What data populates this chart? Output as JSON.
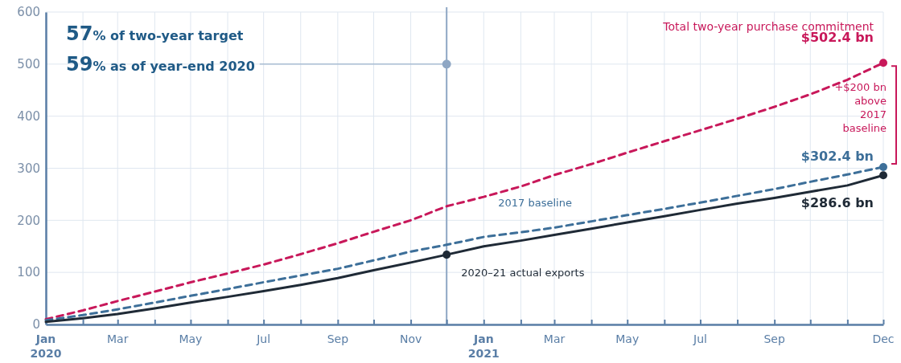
{
  "chart_data": {
    "type": "line",
    "x": [
      "2020-01",
      "2020-02",
      "2020-03",
      "2020-04",
      "2020-05",
      "2020-06",
      "2020-07",
      "2020-08",
      "2020-09",
      "2020-10",
      "2020-11",
      "2020-12",
      "2021-01",
      "2021-02",
      "2021-03",
      "2021-04",
      "2021-05",
      "2021-06",
      "2021-07",
      "2021-08",
      "2021-09",
      "2021-10",
      "2021-11",
      "2021-12"
    ],
    "series": [
      {
        "name": "Total two-year purchase commitment",
        "color": "#c8185a",
        "line_style": "dashed",
        "values": [
          10,
          27,
          45,
          63,
          81,
          98,
          115,
          135,
          156,
          178,
          200,
          227,
          245,
          265,
          287,
          308,
          330,
          352,
          373,
          395,
          418,
          442,
          470,
          502.4
        ],
        "value_labels": [
          null,
          null,
          null,
          null,
          null,
          null,
          null,
          null,
          null,
          null,
          null,
          null,
          null,
          null,
          null,
          null,
          null,
          null,
          null,
          null,
          null,
          null,
          null,
          "$502.4 bn"
        ]
      },
      {
        "name": "2017 baseline",
        "color": "#3d6f99",
        "line_style": "dashed",
        "values": [
          8,
          18,
          29,
          42,
          55,
          68,
          81,
          94,
          107,
          123,
          140,
          153,
          168,
          177,
          186,
          198,
          210,
          222,
          234,
          247,
          260,
          274,
          288,
          302.4
        ],
        "value_labels": [
          null,
          null,
          null,
          null,
          null,
          null,
          null,
          null,
          null,
          null,
          null,
          null,
          null,
          null,
          null,
          null,
          null,
          null,
          null,
          null,
          null,
          null,
          null,
          "$302.4 bn"
        ]
      },
      {
        "name": "2020–21 actual exports",
        "color": "#1f2a36",
        "line_style": "solid",
        "values": [
          5,
          12,
          20,
          31,
          42,
          53,
          64,
          76,
          89,
          104,
          119,
          134,
          150,
          161,
          172,
          184,
          196,
          208,
          220,
          232,
          243,
          255,
          267,
          286.6
        ],
        "value_labels": [
          null,
          null,
          null,
          null,
          null,
          null,
          null,
          null,
          null,
          null,
          null,
          null,
          null,
          null,
          null,
          null,
          null,
          null,
          null,
          null,
          null,
          null,
          null,
          "$286.6 bn"
        ]
      },
      {
        "type": "scatter",
        "color": "#1f2a36",
        "marker": "circle",
        "x": [
          "2020-12"
        ],
        "values": [
          134
        ]
      }
    ],
    "xlim": [
      "2020-01",
      "2021-12"
    ],
    "xticks": [
      {
        "value": "2020-01",
        "label": "Jan 2020"
      },
      {
        "value": "2020-02",
        "label": null
      },
      {
        "value": "2020-03",
        "label": "Mar"
      },
      {
        "value": "2020-04",
        "label": null
      },
      {
        "value": "2020-05",
        "label": "May"
      },
      {
        "value": "2020-06",
        "label": null
      },
      {
        "value": "2020-07",
        "label": "Jul"
      },
      {
        "value": "2020-08",
        "label": null
      },
      {
        "value": "2020-09",
        "label": "Sep"
      },
      {
        "value": "2020-10",
        "label": null
      },
      {
        "value": "2020-11",
        "label": "Nov"
      },
      {
        "value": "2020-12",
        "label": null
      },
      {
        "value": "2021-01",
        "label": "Jan 2021"
      },
      {
        "value": "2021-02",
        "label": null
      },
      {
        "value": "2021-03",
        "label": "Mar"
      },
      {
        "value": "2021-04",
        "label": null
      },
      {
        "value": "2021-05",
        "label": "May"
      },
      {
        "value": "2021-06",
        "label": null
      },
      {
        "value": "2021-07",
        "label": "Jul"
      },
      {
        "value": "2021-08",
        "label": null
      },
      {
        "value": "2021-09",
        "label": "Sep"
      },
      {
        "value": "2021-10",
        "label": null
      },
      {
        "value": "2021-11",
        "label": null
      },
      {
        "value": "2021-12",
        "label": "Dec"
      }
    ],
    "ylim": [
      0,
      600
    ],
    "yticks": [
      0,
      100,
      200,
      300,
      400,
      500,
      600
    ],
    "grid": true,
    "legend": false,
    "marker": "none",
    "ref_lines": [
      {
        "axis": "x",
        "value": "2020-12",
        "color": "#8fa7c4"
      }
    ],
    "annotations": [
      "57% of two-year target",
      {
        "text": "59% as of year-end 2020",
        "x": "2020-12",
        "y": 500
      },
      "+$200 bn above 2017 baseline"
    ]
  }
}
